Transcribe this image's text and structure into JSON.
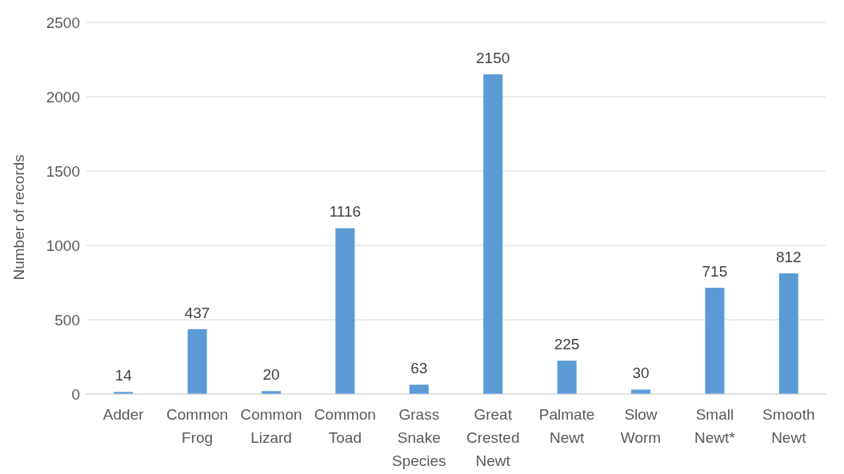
{
  "chart_data": {
    "type": "bar",
    "ylabel": "Number of records",
    "categories": [
      "Adder",
      "Common Frog",
      "Common Lizard",
      "Common Toad",
      "Grass Snake Species",
      "Great Crested Newt",
      "Palmate Newt",
      "Slow Worm",
      "Small Newt*",
      "Smooth Newt"
    ],
    "values": [
      14,
      437,
      20,
      1116,
      63,
      2150,
      225,
      30,
      715,
      812
    ],
    "color": "#5b9bd5",
    "ylim": [
      0,
      2500
    ],
    "yticks": [
      0,
      500,
      1000,
      1500,
      2000,
      2500
    ],
    "grid": "y",
    "data_labels": true
  }
}
